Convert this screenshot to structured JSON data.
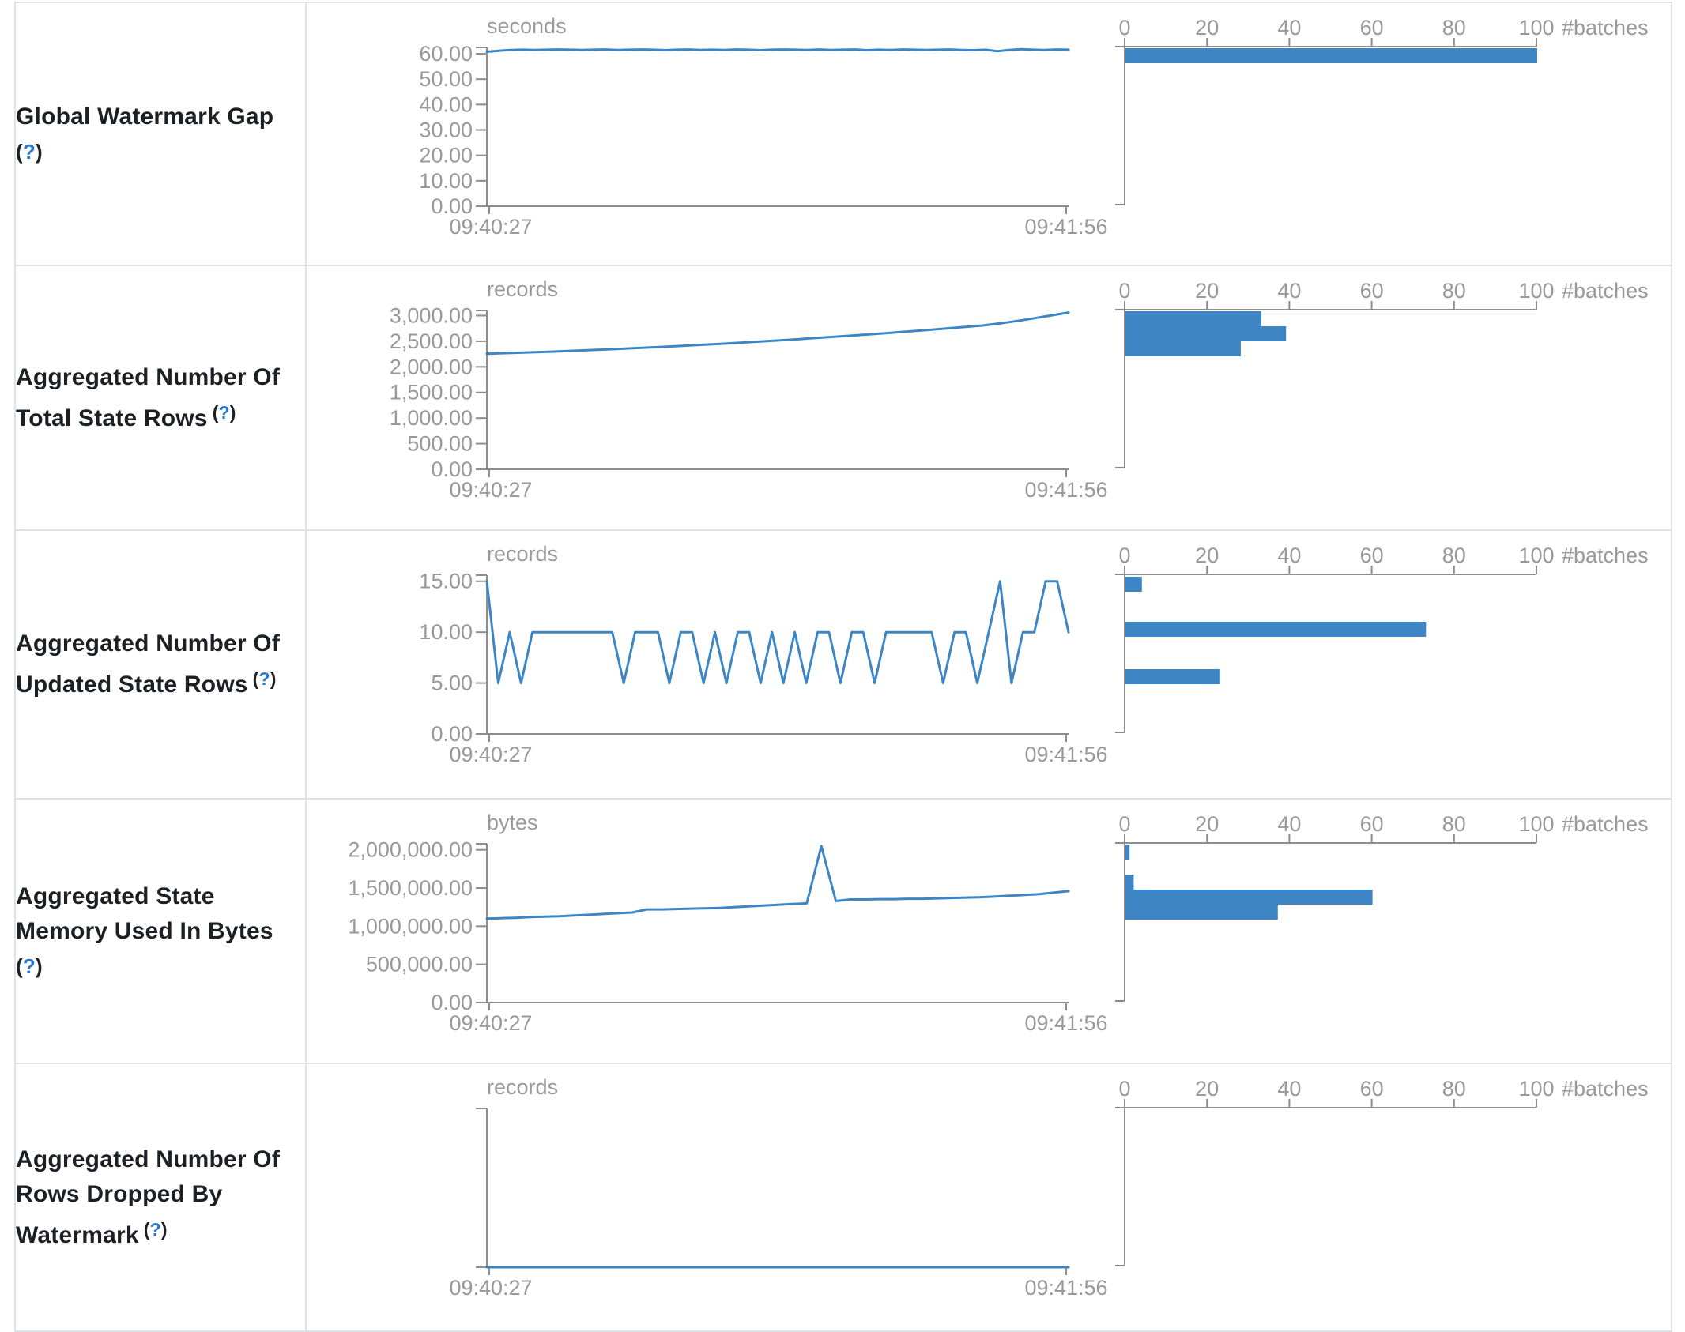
{
  "page": {
    "background": "#ffffff",
    "border_color": "#dee1e6",
    "accent_blue": "#3c86c6",
    "bar_blue": "#3d85c4",
    "axis_color": "#8b8d90",
    "chart_text_gray": "#97999c",
    "label_color": "#1c1f23",
    "help_blue": "#2878d0"
  },
  "chart_data": [
    {
      "metric": {
        "lines": [
          "Global Watermark Gap"
        ],
        "help_mark": "(?)",
        "help_own_line": true
      },
      "timeline": {
        "type": "line",
        "unit": "seconds",
        "x_start": "09:40:27",
        "x_end": "09:41:56",
        "y_scale_max": 62.5,
        "y_ticks": [
          {
            "v": 60,
            "label": "60.00"
          },
          {
            "v": 50,
            "label": "50.00"
          },
          {
            "v": 40,
            "label": "40.00"
          },
          {
            "v": 30,
            "label": "30.00"
          },
          {
            "v": 20,
            "label": "20.00"
          },
          {
            "v": 10,
            "label": "10.00"
          },
          {
            "v": 0,
            "label": "0.00"
          }
        ],
        "values": [
          60.8,
          61.2,
          61.5,
          61.6,
          61.5,
          61.6,
          61.7,
          61.6,
          61.5,
          61.6,
          61.7,
          61.5,
          61.6,
          61.7,
          61.6,
          61.4,
          61.6,
          61.7,
          61.5,
          61.6,
          61.5,
          61.7,
          61.6,
          61.4,
          61.6,
          61.7,
          61.6,
          61.5,
          61.7,
          61.5,
          61.6,
          61.7,
          61.4,
          61.6,
          61.5,
          61.7,
          61.6,
          61.5,
          61.6,
          61.7,
          61.5,
          61.4,
          61.6,
          61.0,
          61.5,
          61.8,
          61.6,
          61.5,
          61.7,
          61.6
        ]
      },
      "histogram": {
        "type": "bar",
        "axis_label": "#batches",
        "x_scale_max": 100,
        "x_ticks": [
          {
            "v": 0,
            "label": "0"
          },
          {
            "v": 20,
            "label": "20"
          },
          {
            "v": 40,
            "label": "40"
          },
          {
            "v": 60,
            "label": "60"
          },
          {
            "v": 80,
            "label": "80"
          },
          {
            "v": 100,
            "label": "100"
          }
        ],
        "bars": [
          {
            "count": 100,
            "top_frac": 0.01
          }
        ]
      }
    },
    {
      "metric": {
        "lines": [
          "Aggregated Number Of",
          "Total State Rows"
        ],
        "help_mark": "(?)",
        "help_own_line": false
      },
      "timeline": {
        "type": "line",
        "unit": "records",
        "x_start": "09:40:27",
        "x_end": "09:41:56",
        "y_scale_max": 3100,
        "y_ticks": [
          {
            "v": 3000,
            "label": "3,000.00"
          },
          {
            "v": 2500,
            "label": "2,500.00"
          },
          {
            "v": 2000,
            "label": "2,000.00"
          },
          {
            "v": 1500,
            "label": "1,500.00"
          },
          {
            "v": 1000,
            "label": "1,000.00"
          },
          {
            "v": 500,
            "label": "500.00"
          },
          {
            "v": 0,
            "label": "0.00"
          }
        ],
        "values": [
          2255,
          2268,
          2282,
          2297,
          2313,
          2330,
          2348,
          2367,
          2387,
          2408,
          2430,
          2453,
          2477,
          2502,
          2528,
          2555,
          2583,
          2612,
          2642,
          2673,
          2705,
          2738,
          2772,
          2807,
          2858,
          2920,
          2990,
          3060
        ]
      },
      "histogram": {
        "type": "bar",
        "axis_label": "#batches",
        "x_scale_max": 100,
        "x_ticks": [
          {
            "v": 0,
            "label": "0"
          },
          {
            "v": 20,
            "label": "20"
          },
          {
            "v": 40,
            "label": "40"
          },
          {
            "v": 60,
            "label": "60"
          },
          {
            "v": 80,
            "label": "80"
          },
          {
            "v": 100,
            "label": "100"
          }
        ],
        "bars": [
          {
            "count": 33,
            "top_frac": 0.01
          },
          {
            "count": 39,
            "top_frac": 0.105
          },
          {
            "count": 28,
            "top_frac": 0.2
          }
        ]
      }
    },
    {
      "metric": {
        "lines": [
          "Aggregated Number Of",
          "Updated State Rows"
        ],
        "help_mark": "(?)",
        "help_own_line": false
      },
      "timeline": {
        "type": "line",
        "unit": "records",
        "x_start": "09:40:27",
        "x_end": "09:41:56",
        "y_scale_max": 15.6,
        "y_ticks": [
          {
            "v": 15,
            "label": "15.00"
          },
          {
            "v": 10,
            "label": "10.00"
          },
          {
            "v": 5,
            "label": "5.00"
          },
          {
            "v": 0,
            "label": "0.00"
          }
        ],
        "values": [
          15,
          5,
          10,
          5,
          10,
          10,
          10,
          10,
          10,
          10,
          10,
          10,
          5,
          10,
          10,
          10,
          5,
          10,
          10,
          5,
          10,
          5,
          10,
          10,
          5,
          10,
          5,
          10,
          5,
          10,
          10,
          5,
          10,
          10,
          5,
          10,
          10,
          10,
          10,
          10,
          5,
          10,
          10,
          5,
          10,
          15,
          5,
          10,
          10,
          15,
          15,
          10
        ]
      },
      "histogram": {
        "type": "bar",
        "axis_label": "#batches",
        "x_scale_max": 100,
        "x_ticks": [
          {
            "v": 0,
            "label": "0"
          },
          {
            "v": 20,
            "label": "20"
          },
          {
            "v": 40,
            "label": "40"
          },
          {
            "v": 60,
            "label": "60"
          },
          {
            "v": 80,
            "label": "80"
          },
          {
            "v": 100,
            "label": "100"
          }
        ],
        "bars": [
          {
            "count": 4,
            "top_frac": 0.015
          },
          {
            "count": 73,
            "top_frac": 0.3
          },
          {
            "count": 23,
            "top_frac": 0.6
          }
        ]
      }
    },
    {
      "metric": {
        "lines": [
          "Aggregated State",
          "Memory Used In Bytes"
        ],
        "help_mark": "(?)",
        "help_own_line": true
      },
      "timeline": {
        "type": "line",
        "unit": "bytes",
        "x_start": "09:40:27",
        "x_end": "09:41:56",
        "y_scale_max": 2080000,
        "y_ticks": [
          {
            "v": 2000000,
            "label": "2,000,000.00"
          },
          {
            "v": 1500000,
            "label": "1,500,000.00"
          },
          {
            "v": 1000000,
            "label": "1,000,000.00"
          },
          {
            "v": 500000,
            "label": "500,000.00"
          },
          {
            "v": 0,
            "label": "0.00"
          }
        ],
        "values": [
          1100000,
          1105000,
          1110000,
          1120000,
          1125000,
          1130000,
          1140000,
          1150000,
          1160000,
          1170000,
          1180000,
          1220000,
          1220000,
          1225000,
          1230000,
          1235000,
          1240000,
          1250000,
          1260000,
          1270000,
          1280000,
          1290000,
          1300000,
          2050000,
          1330000,
          1350000,
          1350000,
          1355000,
          1355000,
          1360000,
          1360000,
          1365000,
          1370000,
          1375000,
          1380000,
          1390000,
          1400000,
          1410000,
          1420000,
          1440000,
          1460000
        ]
      },
      "histogram": {
        "type": "bar",
        "axis_label": "#batches",
        "x_scale_max": 100,
        "x_ticks": [
          {
            "v": 0,
            "label": "0"
          },
          {
            "v": 20,
            "label": "20"
          },
          {
            "v": 40,
            "label": "40"
          },
          {
            "v": 60,
            "label": "60"
          },
          {
            "v": 80,
            "label": "80"
          },
          {
            "v": 100,
            "label": "100"
          }
        ],
        "bars": [
          {
            "count": 1,
            "top_frac": 0.01
          },
          {
            "count": 2,
            "top_frac": 0.2
          },
          {
            "count": 60,
            "top_frac": 0.295
          },
          {
            "count": 37,
            "top_frac": 0.39
          }
        ]
      }
    },
    {
      "metric": {
        "lines": [
          "Aggregated Number Of",
          "Rows Dropped By",
          "Watermark"
        ],
        "help_mark": "(?)",
        "help_own_line": false
      },
      "timeline": {
        "type": "line",
        "unit": "records",
        "x_start": "09:40:27",
        "x_end": "09:41:56",
        "y_scale_max": 1,
        "y_ticks": [
          {
            "v": 0,
            "label": ""
          }
        ],
        "values": [
          0,
          0,
          0,
          0,
          0,
          0,
          0,
          0,
          0,
          0,
          0,
          0,
          0,
          0,
          0,
          0,
          0,
          0,
          0,
          0,
          0,
          0,
          0,
          0,
          0,
          0,
          0,
          0,
          0,
          0,
          0,
          0,
          0,
          0,
          0,
          0,
          0,
          0,
          0,
          0
        ]
      },
      "histogram": {
        "type": "bar",
        "axis_label": "#batches",
        "x_scale_max": 100,
        "x_ticks": [
          {
            "v": 0,
            "label": "0"
          },
          {
            "v": 20,
            "label": "20"
          },
          {
            "v": 40,
            "label": "40"
          },
          {
            "v": 60,
            "label": "60"
          },
          {
            "v": 80,
            "label": "80"
          },
          {
            "v": 100,
            "label": "100"
          }
        ],
        "bars": []
      }
    }
  ],
  "layout_row_heights": [
    333,
    335,
    340,
    335,
    339
  ]
}
